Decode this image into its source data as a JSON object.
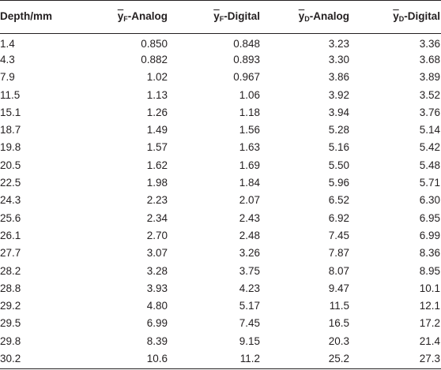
{
  "table": {
    "headers": {
      "depth": "Depth/mm",
      "yf_analog_sym": "y",
      "yf_analog_sub": "F",
      "yf_analog_suffix": "-Analog",
      "yf_digital_sym": "y",
      "yf_digital_sub": "F",
      "yf_digital_suffix": "-Digital",
      "yd_analog_sym": "y",
      "yd_analog_sub": "D",
      "yd_analog_suffix": "-Analog",
      "yd_digital_sym": "y",
      "yd_digital_sub": "D",
      "yd_digital_suffix": "-Digital"
    },
    "rows": [
      [
        "1.4",
        "0.850",
        "0.848",
        "3.23",
        "3.36"
      ],
      [
        "4.3",
        "0.882",
        "0.893",
        "3.30",
        "3.68"
      ],
      [
        "7.9",
        "1.02",
        "0.967",
        "3.86",
        "3.89"
      ],
      [
        "11.5",
        "1.13",
        "1.06",
        "3.92",
        "3.52"
      ],
      [
        "15.1",
        "1.26",
        "1.18",
        "3.94",
        "3.76"
      ],
      [
        "18.7",
        "1.49",
        "1.56",
        "5.28",
        "5.14"
      ],
      [
        "19.8",
        "1.57",
        "1.63",
        "5.16",
        "5.42"
      ],
      [
        "20.5",
        "1.62",
        "1.69",
        "5.50",
        "5.48"
      ],
      [
        "22.5",
        "1.98",
        "1.84",
        "5.96",
        "5.71"
      ],
      [
        "24.3",
        "2.23",
        "2.07",
        "6.52",
        "6.30"
      ],
      [
        "25.6",
        "2.34",
        "2.43",
        "6.92",
        "6.95"
      ],
      [
        "26.1",
        "2.70",
        "2.48",
        "7.45",
        "6.99"
      ],
      [
        "27.7",
        "3.07",
        "3.26",
        "7.87",
        "8.36"
      ],
      [
        "28.2",
        "3.28",
        "3.75",
        "8.07",
        "8.95"
      ],
      [
        "28.8",
        "3.93",
        "4.23",
        "9.47",
        "10.1"
      ],
      [
        "29.2",
        "4.80",
        "5.17",
        "11.5",
        "12.1"
      ],
      [
        "29.5",
        "6.99",
        "7.45",
        "16.5",
        "17.2"
      ],
      [
        "29.8",
        "8.39",
        "9.15",
        "20.3",
        "21.4"
      ],
      [
        "30.2",
        "10.6",
        "11.2",
        "25.2",
        "27.3"
      ]
    ]
  },
  "colors": {
    "text": "#231f20",
    "rule": "#231f20",
    "background": "#ffffff"
  }
}
